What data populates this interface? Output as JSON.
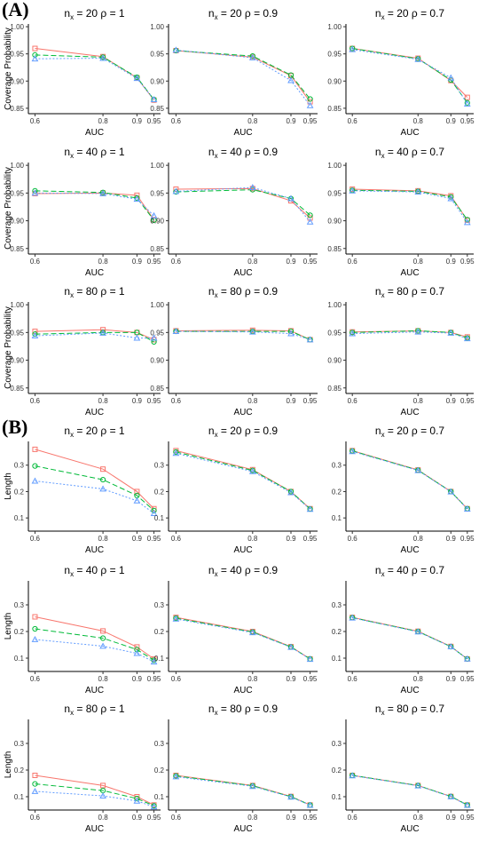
{
  "figure": {
    "panel_labels": [
      "(A)",
      "(B)"
    ],
    "colors": {
      "series1": "#F8766D",
      "series2": "#00BA38",
      "series3": "#619CFF",
      "axis": "#000000"
    }
  },
  "chart_data": [
    {
      "type": "line",
      "section": "A",
      "title": "n_x = 20  ρ = 1",
      "xlabel": "AUC",
      "ylabel": "Coverage Probability",
      "categories": [
        "0.6",
        "0.8",
        "0.9",
        "0.95"
      ],
      "yticks": [
        "0.85",
        "0.90",
        "0.95",
        "1.00"
      ],
      "ylim": [
        0.84,
        1.005
      ],
      "series": [
        {
          "values": [
            0.96,
            0.945,
            0.906,
            0.865
          ]
        },
        {
          "values": [
            0.948,
            0.944,
            0.907,
            0.866
          ]
        },
        {
          "values": [
            0.941,
            0.942,
            0.905,
            0.866
          ]
        }
      ]
    },
    {
      "type": "line",
      "section": "A",
      "title": "n_x = 20  ρ = 0.9",
      "xlabel": "AUC",
      "ylabel": "",
      "categories": [
        "0.6",
        "0.8",
        "0.9",
        "0.95"
      ],
      "yticks": [
        "0.85",
        "0.90",
        "0.95",
        "1.00"
      ],
      "ylim": [
        0.84,
        1.005
      ],
      "series": [
        {
          "values": [
            0.956,
            0.944,
            0.91,
            0.862
          ]
        },
        {
          "values": [
            0.956,
            0.946,
            0.911,
            0.867
          ]
        },
        {
          "values": [
            0.957,
            0.943,
            0.901,
            0.855
          ]
        }
      ]
    },
    {
      "type": "line",
      "section": "A",
      "title": "n_x = 20  ρ = 0.7",
      "xlabel": "AUC",
      "ylabel": "",
      "categories": [
        "0.6",
        "0.8",
        "0.9",
        "0.95"
      ],
      "yticks": [
        "0.85",
        "0.90",
        "0.95",
        "1.00"
      ],
      "ylim": [
        0.84,
        1.005
      ],
      "series": [
        {
          "values": [
            0.96,
            0.942,
            0.901,
            0.87
          ]
        },
        {
          "values": [
            0.96,
            0.941,
            0.902,
            0.86
          ]
        },
        {
          "values": [
            0.958,
            0.94,
            0.906,
            0.858
          ]
        }
      ]
    },
    {
      "type": "line",
      "section": "A",
      "title": "n_x = 40  ρ = 1",
      "xlabel": "AUC",
      "ylabel": "Coverage Probability",
      "categories": [
        "0.6",
        "0.8",
        "0.9",
        "0.95"
      ],
      "yticks": [
        "0.85",
        "0.90",
        "0.95",
        "1.00"
      ],
      "ylim": [
        0.84,
        1.005
      ],
      "series": [
        {
          "values": [
            0.949,
            0.95,
            0.946,
            0.902
          ]
        },
        {
          "values": [
            0.954,
            0.951,
            0.941,
            0.901
          ]
        },
        {
          "values": [
            0.95,
            0.949,
            0.939,
            0.909
          ]
        }
      ]
    },
    {
      "type": "line",
      "section": "A",
      "title": "n_x = 40  ρ = 0.9",
      "xlabel": "AUC",
      "ylabel": "",
      "categories": [
        "0.6",
        "0.8",
        "0.9",
        "0.95"
      ],
      "yticks": [
        "0.85",
        "0.90",
        "0.95",
        "1.00"
      ],
      "ylim": [
        0.84,
        1.005
      ],
      "series": [
        {
          "values": [
            0.957,
            0.958,
            0.936,
            0.905
          ]
        },
        {
          "values": [
            0.952,
            0.956,
            0.94,
            0.91
          ]
        },
        {
          "values": [
            0.953,
            0.96,
            0.94,
            0.898
          ]
        }
      ]
    },
    {
      "type": "line",
      "section": "A",
      "title": "n_x = 40  ρ = 0.7",
      "xlabel": "AUC",
      "ylabel": "",
      "categories": [
        "0.6",
        "0.8",
        "0.9",
        "0.95"
      ],
      "yticks": [
        "0.85",
        "0.90",
        "0.95",
        "1.00"
      ],
      "ylim": [
        0.84,
        1.005
      ],
      "series": [
        {
          "values": [
            0.957,
            0.954,
            0.945,
            0.901
          ]
        },
        {
          "values": [
            0.955,
            0.953,
            0.943,
            0.902
          ]
        },
        {
          "values": [
            0.954,
            0.952,
            0.94,
            0.897
          ]
        }
      ]
    },
    {
      "type": "line",
      "section": "A",
      "title": "n_x = 80  ρ = 1",
      "xlabel": "AUC",
      "ylabel": "Coverage Probability",
      "categories": [
        "0.6",
        "0.8",
        "0.9",
        "0.95"
      ],
      "yticks": [
        "0.85",
        "0.90",
        "0.95",
        "1.00"
      ],
      "ylim": [
        0.84,
        1.005
      ],
      "series": [
        {
          "values": [
            0.952,
            0.955,
            0.95,
            0.937
          ]
        },
        {
          "values": [
            0.947,
            0.95,
            0.95,
            0.933
          ]
        },
        {
          "values": [
            0.944,
            0.949,
            0.94,
            0.94
          ]
        }
      ]
    },
    {
      "type": "line",
      "section": "A",
      "title": "n_x = 80  ρ = 0.9",
      "xlabel": "AUC",
      "ylabel": "",
      "categories": [
        "0.6",
        "0.8",
        "0.9",
        "0.95"
      ],
      "yticks": [
        "0.85",
        "0.90",
        "0.95",
        "1.00"
      ],
      "ylim": [
        0.84,
        1.005
      ],
      "series": [
        {
          "values": [
            0.953,
            0.954,
            0.953,
            0.937
          ]
        },
        {
          "values": [
            0.952,
            0.952,
            0.952,
            0.937
          ]
        },
        {
          "values": [
            0.952,
            0.951,
            0.948,
            0.937
          ]
        }
      ]
    },
    {
      "type": "line",
      "section": "A",
      "title": "n_x = 80  ρ = 0.7",
      "xlabel": "AUC",
      "ylabel": "",
      "categories": [
        "0.6",
        "0.8",
        "0.9",
        "0.95"
      ],
      "yticks": [
        "0.85",
        "0.90",
        "0.95",
        "1.00"
      ],
      "ylim": [
        0.84,
        1.005
      ],
      "series": [
        {
          "values": [
            0.951,
            0.953,
            0.95,
            0.942
          ]
        },
        {
          "values": [
            0.95,
            0.953,
            0.95,
            0.94
          ]
        },
        {
          "values": [
            0.948,
            0.951,
            0.949,
            0.939
          ]
        }
      ]
    },
    {
      "type": "line",
      "section": "B",
      "title": "n_x = 20  ρ = 1",
      "xlabel": "AUC",
      "ylabel": "Length",
      "categories": [
        "0.6",
        "0.8",
        "0.9",
        "0.95"
      ],
      "yticks": [
        "0.1",
        "0.2",
        "0.3"
      ],
      "ylim": [
        0.05,
        0.39
      ],
      "series": [
        {
          "values": [
            0.36,
            0.285,
            0.2,
            0.135
          ]
        },
        {
          "values": [
            0.297,
            0.245,
            0.185,
            0.128
          ]
        },
        {
          "values": [
            0.24,
            0.21,
            0.165,
            0.117
          ]
        }
      ]
    },
    {
      "type": "line",
      "section": "B",
      "title": "n_x = 20  ρ = 0.9",
      "xlabel": "AUC",
      "ylabel": "",
      "categories": [
        "0.6",
        "0.8",
        "0.9",
        "0.95"
      ],
      "yticks": [
        "0.1",
        "0.2",
        "0.3"
      ],
      "ylim": [
        0.05,
        0.39
      ],
      "series": [
        {
          "values": [
            0.355,
            0.283,
            0.2,
            0.135
          ]
        },
        {
          "values": [
            0.35,
            0.28,
            0.2,
            0.134
          ]
        },
        {
          "values": [
            0.345,
            0.276,
            0.196,
            0.133
          ]
        }
      ]
    },
    {
      "type": "line",
      "section": "B",
      "title": "n_x = 20  ρ = 0.7",
      "xlabel": "AUC",
      "ylabel": "",
      "categories": [
        "0.6",
        "0.8",
        "0.9",
        "0.95"
      ],
      "yticks": [
        "0.1",
        "0.2",
        "0.3"
      ],
      "ylim": [
        0.05,
        0.39
      ],
      "series": [
        {
          "values": [
            0.355,
            0.282,
            0.2,
            0.135
          ]
        },
        {
          "values": [
            0.354,
            0.281,
            0.2,
            0.135
          ]
        },
        {
          "values": [
            0.352,
            0.28,
            0.199,
            0.134
          ]
        }
      ]
    },
    {
      "type": "line",
      "section": "B",
      "title": "n_x = 40  ρ = 1",
      "xlabel": "AUC",
      "ylabel": "Length",
      "categories": [
        "0.6",
        "0.8",
        "0.9",
        "0.95"
      ],
      "yticks": [
        "0.1",
        "0.2",
        "0.3"
      ],
      "ylim": [
        0.05,
        0.39
      ],
      "series": [
        {
          "values": [
            0.255,
            0.202,
            0.142,
            0.097
          ]
        },
        {
          "values": [
            0.21,
            0.175,
            0.132,
            0.092
          ]
        },
        {
          "values": [
            0.17,
            0.145,
            0.118,
            0.086
          ]
        }
      ]
    },
    {
      "type": "line",
      "section": "B",
      "title": "n_x = 40  ρ = 0.9",
      "xlabel": "AUC",
      "ylabel": "",
      "categories": [
        "0.6",
        "0.8",
        "0.9",
        "0.95"
      ],
      "yticks": [
        "0.1",
        "0.2",
        "0.3"
      ],
      "ylim": [
        0.05,
        0.39
      ],
      "series": [
        {
          "values": [
            0.253,
            0.2,
            0.143,
            0.097
          ]
        },
        {
          "values": [
            0.25,
            0.198,
            0.142,
            0.097
          ]
        },
        {
          "values": [
            0.247,
            0.196,
            0.141,
            0.096
          ]
        }
      ]
    },
    {
      "type": "line",
      "section": "B",
      "title": "n_x = 40  ρ = 0.7",
      "xlabel": "AUC",
      "ylabel": "",
      "categories": [
        "0.6",
        "0.8",
        "0.9",
        "0.95"
      ],
      "yticks": [
        "0.1",
        "0.2",
        "0.3"
      ],
      "ylim": [
        0.05,
        0.39
      ],
      "series": [
        {
          "values": [
            0.253,
            0.201,
            0.144,
            0.097
          ]
        },
        {
          "values": [
            0.252,
            0.2,
            0.143,
            0.097
          ]
        },
        {
          "values": [
            0.251,
            0.199,
            0.143,
            0.097
          ]
        }
      ]
    },
    {
      "type": "line",
      "section": "B",
      "title": "n_x = 80  ρ = 1",
      "xlabel": "AUC",
      "ylabel": "Length",
      "categories": [
        "0.6",
        "0.8",
        "0.9",
        "0.95"
      ],
      "yticks": [
        "0.1",
        "0.2",
        "0.3"
      ],
      "ylim": [
        0.05,
        0.39
      ],
      "series": [
        {
          "values": [
            0.18,
            0.142,
            0.1,
            0.069
          ]
        },
        {
          "values": [
            0.148,
            0.123,
            0.093,
            0.066
          ]
        },
        {
          "values": [
            0.12,
            0.103,
            0.084,
            0.062
          ]
        }
      ]
    },
    {
      "type": "line",
      "section": "B",
      "title": "n_x = 80  ρ = 0.9",
      "xlabel": "AUC",
      "ylabel": "",
      "categories": [
        "0.6",
        "0.8",
        "0.9",
        "0.95"
      ],
      "yticks": [
        "0.1",
        "0.2",
        "0.3"
      ],
      "ylim": [
        0.05,
        0.39
      ],
      "series": [
        {
          "values": [
            0.18,
            0.142,
            0.101,
            0.069
          ]
        },
        {
          "values": [
            0.178,
            0.141,
            0.1,
            0.069
          ]
        },
        {
          "values": [
            0.175,
            0.139,
            0.099,
            0.068
          ]
        }
      ]
    },
    {
      "type": "line",
      "section": "B",
      "title": "n_x = 80  ρ = 0.7",
      "xlabel": "AUC",
      "ylabel": "",
      "categories": [
        "0.6",
        "0.8",
        "0.9",
        "0.95"
      ],
      "yticks": [
        "0.1",
        "0.2",
        "0.3"
      ],
      "ylim": [
        0.05,
        0.39
      ],
      "series": [
        {
          "values": [
            0.18,
            0.142,
            0.101,
            0.069
          ]
        },
        {
          "values": [
            0.18,
            0.142,
            0.101,
            0.069
          ]
        },
        {
          "values": [
            0.179,
            0.141,
            0.1,
            0.068
          ]
        }
      ]
    }
  ]
}
